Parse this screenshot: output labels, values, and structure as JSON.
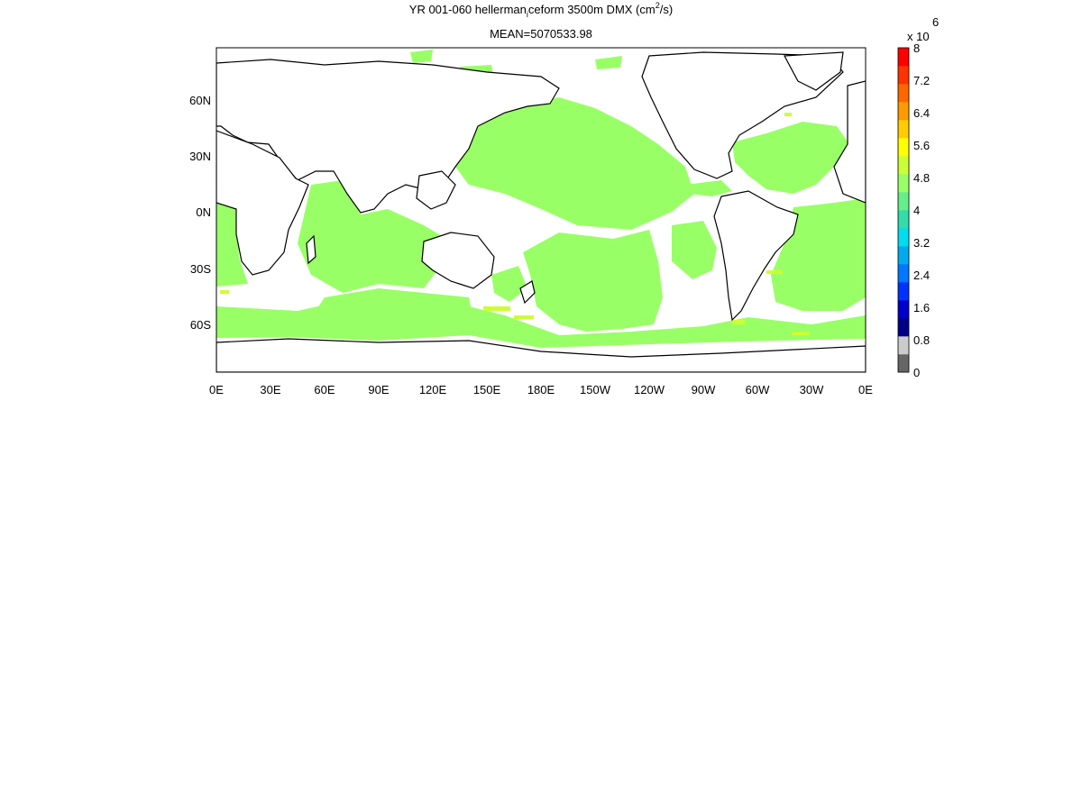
{
  "title": {
    "line1_pre": "YR 001-060 hellerman",
    "line1_sub": "i",
    "line1_mid": "ceform 3500m DMX (cm",
    "line1_sup": "2",
    "line1_post": "/s)",
    "line2": "MEAN=5070533.98"
  },
  "x_ticks": [
    "0E",
    "30E",
    "60E",
    "90E",
    "120E",
    "150E",
    "180E",
    "150W",
    "120W",
    "90W",
    "60W",
    "30W",
    "0E"
  ],
  "y_ticks": [
    "60N",
    "30N",
    "0N",
    "30S",
    "60S"
  ],
  "colorbar": {
    "multiplier_prefix": "x 10",
    "multiplier_exp": "6",
    "labels": [
      "0",
      "0.8",
      "1.6",
      "2.4",
      "3.2",
      "4",
      "4.8",
      "5.6",
      "6.4",
      "7.2",
      "8"
    ],
    "colors": [
      "#666666",
      "#cccccc",
      "#000088",
      "#0000cc",
      "#0033ff",
      "#0077ff",
      "#00aaee",
      "#00ddee",
      "#33ddaa",
      "#66ee88",
      "#99ff66",
      "#ccff33",
      "#ffff00",
      "#ffcc00",
      "#ff9900",
      "#ff6600",
      "#ff3300",
      "#ff0000"
    ]
  },
  "chart_data": {
    "type": "heatmap",
    "title": "YR 001-060 hellerman_i ceform 3500m DMX (cm^2/s)",
    "subtitle": "MEAN=5070533.98",
    "x_range": [
      "0E",
      "0E"
    ],
    "y_ticks": [
      "60N",
      "30N",
      "0N",
      "30S",
      "60S"
    ],
    "colorbar_range": [
      0,
      8
    ],
    "colorbar_scale": "x 10^6",
    "dominant_value": 5.07,
    "fill_color": "#99ff66",
    "land_color": "#ffffff",
    "coastline_color": "#000000"
  }
}
